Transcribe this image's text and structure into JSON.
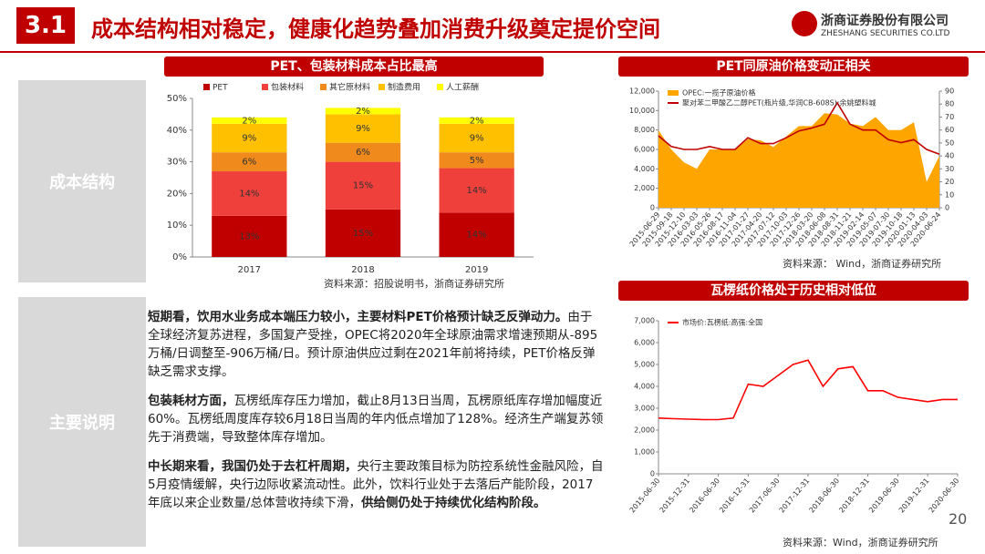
{
  "header": {
    "section": "3.1",
    "title": "成本结构相对稳定，健康化趋势叠加消费升级奠定提价空间",
    "company": "浙商证券股份有限公司",
    "company_en": "ZHESHANG SECURITIES CO.LTD"
  },
  "sidebar": [
    "成本结构",
    "主要说明"
  ],
  "paragraphs": [
    [
      {
        "text": "短期看，饮用水业务成本端压力较小，主要材料PET价格预计缺乏反弹动力。",
        "bold": true
      },
      {
        "text": "由于全球经济复苏进程，多国复产受挫，OPEC将2020年全球原油需求增速预期从-895万桶/日调整至-906万桶/日。预计原油供应过剩在2021年前将持续，PET价格反弹缺乏需求支撑。",
        "bold": false
      }
    ],
    [
      {
        "text": "包装耗材方面，",
        "bold": true
      },
      {
        "text": "瓦楞纸库存压力增加，截止8月13日当周，瓦楞原纸库存增加幅度近60%。瓦楞纸周度库存较6月18日当周的年内低点增加了128%。经济生产端复苏领先于消费端，导致整体库存增加。",
        "bold": false
      }
    ],
    [
      {
        "text": "中长期来看，我国仍处于去杠杆周期，",
        "bold": true
      },
      {
        "text": "央行主要政策目标为防控系统性金融风险，自5月疫情缓解，央行边际收紧流动性。此外，饮料行业处于去落后产能阶段，2017年底以来企业数量/总体营收持续下滑，",
        "bold": false
      },
      {
        "text": "供给侧仍处于持续优化结构阶段。",
        "bold": true
      }
    ]
  ],
  "page_number": "20",
  "chart_data": [
    {
      "type": "bar",
      "stacked": true,
      "title": "PET、包装材料成本占比最高",
      "source": "资料来源：招股说明书，浙商证券研究所",
      "categories": [
        "2017",
        "2018",
        "2019"
      ],
      "series": [
        {
          "name": "PET",
          "color": "#c00000",
          "values": [
            13,
            15,
            14
          ],
          "value_labels": [
            "13%",
            "15%",
            "14%"
          ]
        },
        {
          "name": "包装材料",
          "color": "#f0403c",
          "values": [
            14,
            15,
            14
          ],
          "value_labels": [
            "14%",
            "15%",
            "14%"
          ]
        },
        {
          "name": "其它原材料",
          "color": "#f08a1c",
          "values": [
            6,
            6,
            5
          ],
          "value_labels": [
            "6%",
            "6%",
            "5%"
          ]
        },
        {
          "name": "制造费用",
          "color": "#ffc000",
          "values": [
            9,
            9,
            9
          ],
          "value_labels": [
            "9%",
            "9%",
            "9%"
          ]
        },
        {
          "name": "人工薪酬",
          "color": "#ffff00",
          "values": [
            2,
            2,
            2
          ],
          "value_labels": [
            "2%",
            "2%",
            "2%"
          ]
        }
      ],
      "ylim": [
        0,
        50
      ],
      "yticks": [
        {
          "value": 0,
          "label": "0%"
        },
        {
          "value": 10,
          "label": "10%"
        },
        {
          "value": 20,
          "label": "20%"
        },
        {
          "value": 30,
          "label": "30%"
        },
        {
          "value": 40,
          "label": "40%"
        },
        {
          "value": 50,
          "label": "50%"
        }
      ],
      "legend": "top"
    },
    {
      "type": "line",
      "title": "PET同原油价格变动正相关",
      "source": "资料来源： Wind，浙商证券研究所",
      "categories": [
        "2015-06-29",
        "2015-09-18",
        "2015-12-10",
        "2016-03-03",
        "2016-05-26",
        "2016-08-17",
        "2016-11-04",
        "2017-01-27",
        "2017-04-20",
        "2017-07-12",
        "2017-10-03",
        "2017-12-26",
        "2018-03-20",
        "2018-06-08",
        "2018-08-31",
        "2018-11-21",
        "2019-02-14",
        "2019-05-07",
        "2019-07-30",
        "2019-10-18",
        "2020-01-13",
        "2020-04-03",
        "2020-06-24"
      ],
      "series": [
        {
          "name": "OPEC:一揽子原油价格",
          "color": "#ffa500",
          "type": "area",
          "axis": "y2",
          "values": [
            60,
            45,
            35,
            30,
            45,
            45,
            45,
            53,
            52,
            47,
            55,
            63,
            63,
            73,
            72,
            65,
            63,
            70,
            60,
            60,
            66,
            20,
            40
          ]
        },
        {
          "name": "聚对苯二甲酸乙二醇PET(瓶片级,华润CB-608S):余姚塑料城",
          "color": "#c00000",
          "values": [
            7400,
            6300,
            6000,
            6000,
            6300,
            6000,
            6000,
            7200,
            6600,
            6600,
            7200,
            7900,
            8200,
            8600,
            10800,
            8600,
            8000,
            8000,
            7000,
            6700,
            7000,
            6000,
            5500
          ]
        }
      ],
      "ylim": [
        0,
        12000
      ],
      "yticks": [
        0,
        {
          "value": 2000,
          "label": "2,000"
        },
        {
          "value": 4000,
          "label": "4,000"
        },
        {
          "value": 6000,
          "label": "6,000"
        },
        {
          "value": 8000,
          "label": "8,000"
        },
        {
          "value": 10000,
          "label": "10,000"
        },
        {
          "value": 12000,
          "label": "12,000"
        }
      ],
      "y2lim": [
        0,
        90
      ],
      "y2ticks": [
        0,
        10,
        20,
        30,
        40,
        50,
        60,
        70,
        80,
        90
      ],
      "legend": "top-left"
    },
    {
      "type": "line",
      "title": "瓦楞纸价格处于历史相对低位",
      "source": "资料来源：Wind，浙商证券研究所",
      "categories": [
        "2015-06-30",
        null,
        "2015-12-31",
        null,
        "2016-06-30",
        null,
        "2016-12-31",
        null,
        "2017-06-30",
        null,
        "2017-12-31",
        null,
        "2018-06-30",
        null,
        "2018-12-31",
        null,
        "2019-06-30",
        null,
        "2019-12-31",
        null,
        "2020-06-30"
      ],
      "series": [
        {
          "name": "市场价:瓦楞纸:高强:全国",
          "color": "#ff0000",
          "values": [
            2550,
            2520,
            2500,
            2480,
            2480,
            2550,
            4100,
            4000,
            4500,
            5000,
            5200,
            4000,
            4800,
            4900,
            3800,
            3800,
            3500,
            3400,
            3300,
            3400,
            3400
          ]
        }
      ],
      "ylim": [
        0,
        7000
      ],
      "yticks": [
        0,
        {
          "value": 1000,
          "label": "1,000"
        },
        {
          "value": 2000,
          "label": "2,000"
        },
        {
          "value": 3000,
          "label": "3,000"
        },
        {
          "value": 4000,
          "label": "4,000"
        },
        {
          "value": 5000,
          "label": "5,000"
        },
        {
          "value": 6000,
          "label": "6,000"
        },
        {
          "value": 7000,
          "label": "7,000"
        }
      ],
      "legend": "top-left"
    }
  ]
}
